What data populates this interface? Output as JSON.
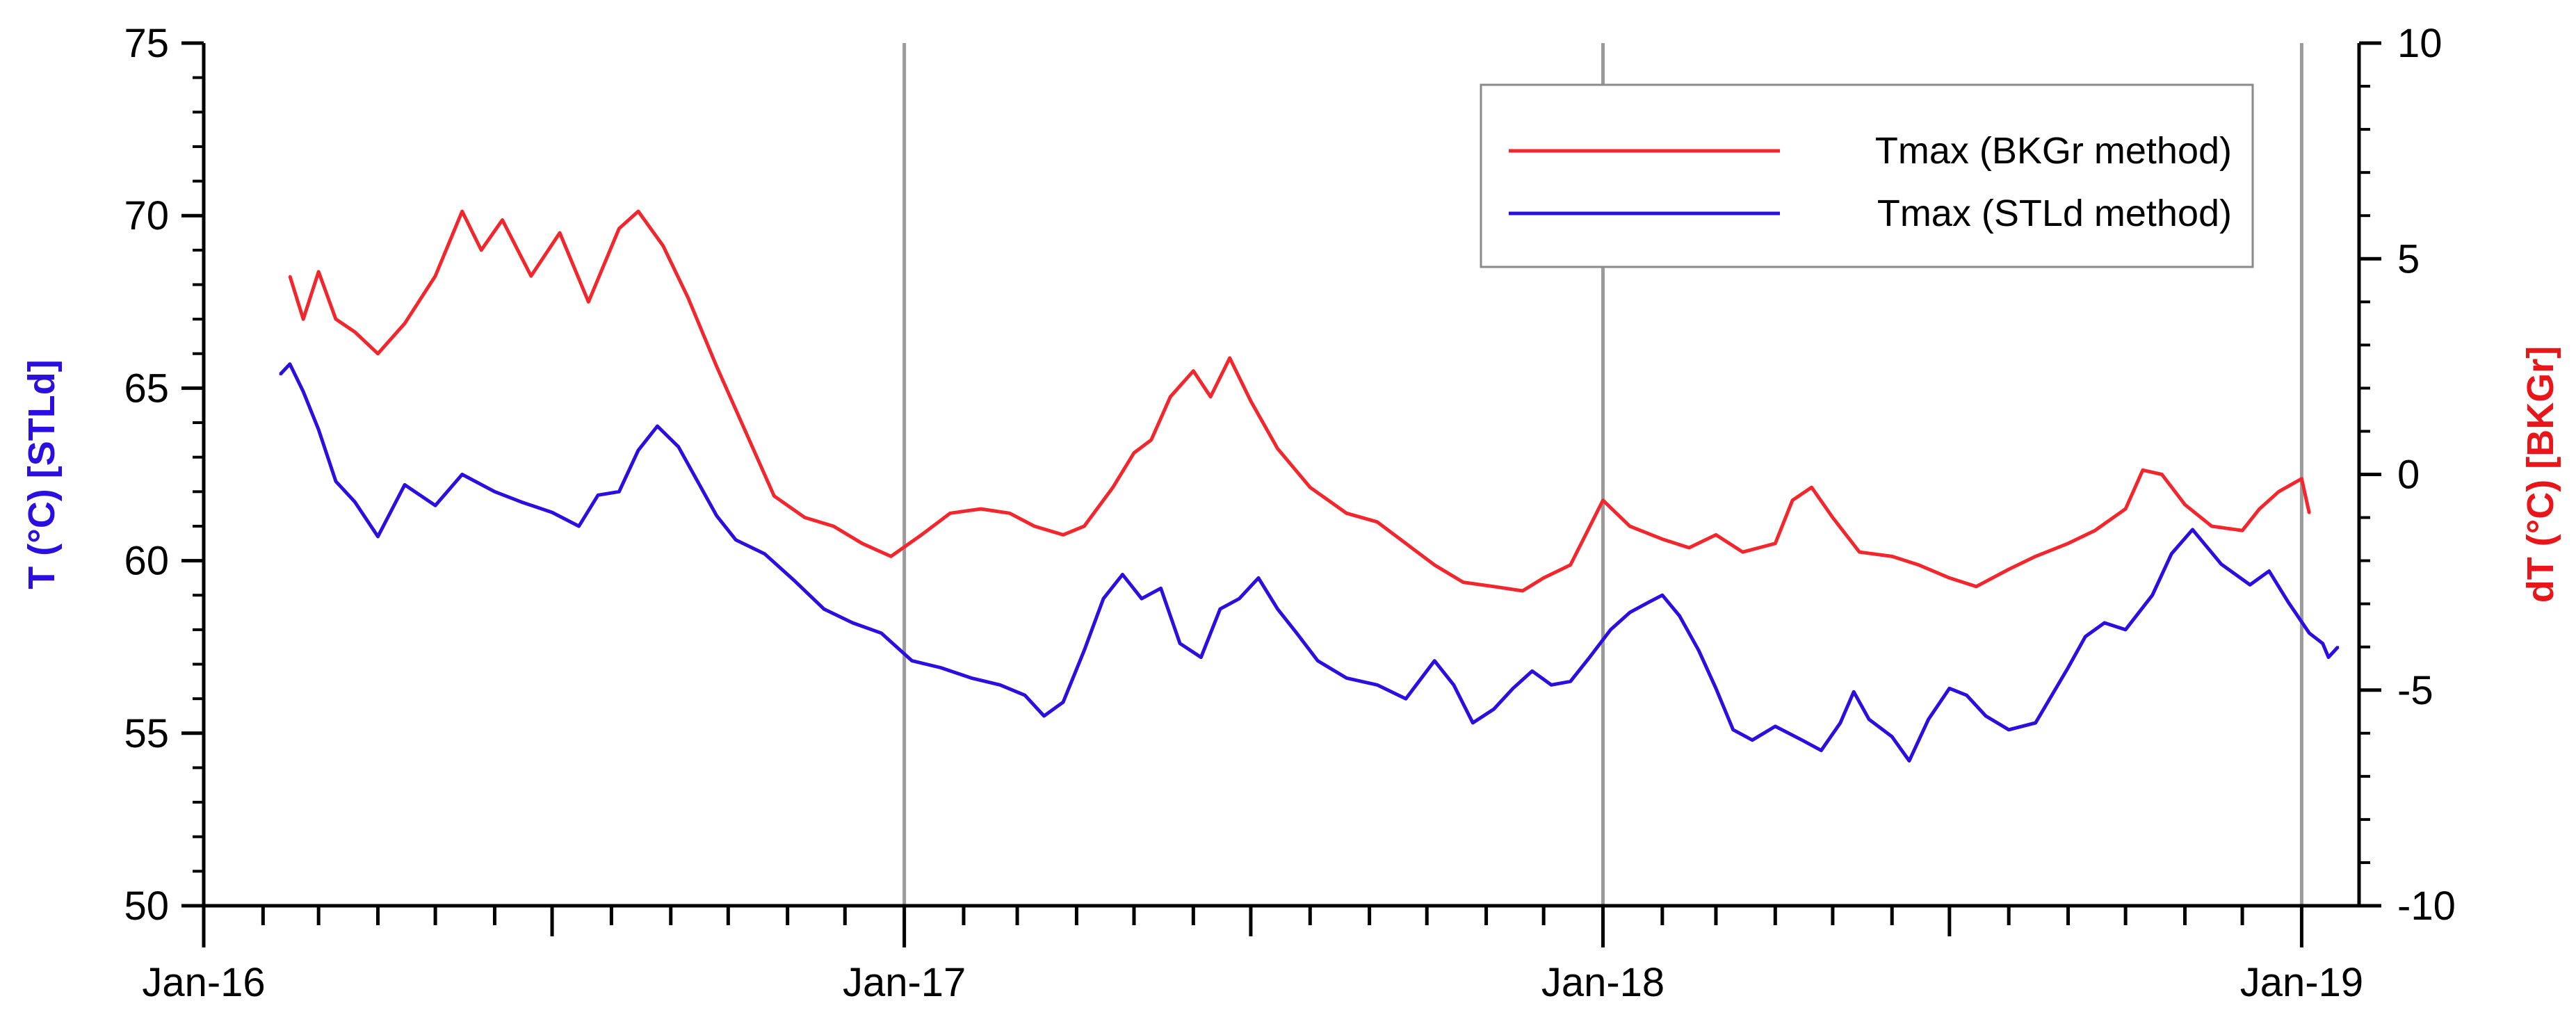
{
  "chart_data": {
    "type": "line",
    "x_axis": {
      "type": "date",
      "range": [
        "2016-01-01",
        "2019-01-31"
      ],
      "tick_labels": [
        "Jan-16",
        "Jan-17",
        "Jan-18",
        "Jan-19"
      ],
      "label_format": "Mon-YY",
      "minor_ticks": "monthly",
      "vertical_gridlines_at": [
        "2017-01-01",
        "2018-01-01",
        "2019-01-01"
      ]
    },
    "y_left": {
      "label": "T (°C) [STLd]",
      "range": [
        50,
        75
      ],
      "ticks": [
        50,
        55,
        60,
        65,
        70,
        75
      ],
      "color": "#2b0fe0"
    },
    "y_right": {
      "label": "dT (°C) [BKGr]",
      "range": [
        -10,
        10
      ],
      "ticks": [
        -10,
        -5,
        0,
        5,
        10
      ],
      "color": "#e8151b"
    },
    "legend": {
      "position": "top-right"
    },
    "series": [
      {
        "name": "Tmax (BKGr method)",
        "color": "#f2262c",
        "axis": "right",
        "points": [
          [
            "2016-02-15",
            4.6
          ],
          [
            "2016-02-22",
            3.6
          ],
          [
            "2016-03-01",
            4.7
          ],
          [
            "2016-03-10",
            3.6
          ],
          [
            "2016-03-20",
            3.3
          ],
          [
            "2016-04-01",
            2.8
          ],
          [
            "2016-04-15",
            3.5
          ],
          [
            "2016-05-01",
            4.6
          ],
          [
            "2016-05-15",
            6.1
          ],
          [
            "2016-05-25",
            5.2
          ],
          [
            "2016-06-05",
            5.9
          ],
          [
            "2016-06-20",
            4.6
          ],
          [
            "2016-07-05",
            5.6
          ],
          [
            "2016-07-20",
            4.0
          ],
          [
            "2016-08-05",
            5.7
          ],
          [
            "2016-08-15",
            6.1
          ],
          [
            "2016-08-28",
            5.3
          ],
          [
            "2016-09-10",
            4.1
          ],
          [
            "2016-09-25",
            2.5
          ],
          [
            "2016-10-10",
            1.0
          ],
          [
            "2016-10-25",
            -0.5
          ],
          [
            "2016-11-10",
            -1.0
          ],
          [
            "2016-11-25",
            -1.2
          ],
          [
            "2016-12-10",
            -1.6
          ],
          [
            "2016-12-25",
            -1.9
          ],
          [
            "2017-01-10",
            -1.4
          ],
          [
            "2017-01-25",
            -0.9
          ],
          [
            "2017-02-10",
            -0.8
          ],
          [
            "2017-02-25",
            -0.9
          ],
          [
            "2017-03-10",
            -1.2
          ],
          [
            "2017-03-25",
            -1.4
          ],
          [
            "2017-04-05",
            -1.2
          ],
          [
            "2017-04-20",
            -0.3
          ],
          [
            "2017-05-01",
            0.5
          ],
          [
            "2017-05-10",
            0.8
          ],
          [
            "2017-05-20",
            1.8
          ],
          [
            "2017-06-01",
            2.4
          ],
          [
            "2017-06-10",
            1.8
          ],
          [
            "2017-06-20",
            2.7
          ],
          [
            "2017-07-01",
            1.7
          ],
          [
            "2017-07-15",
            0.6
          ],
          [
            "2017-08-01",
            -0.3
          ],
          [
            "2017-08-20",
            -0.9
          ],
          [
            "2017-09-05",
            -1.1
          ],
          [
            "2017-09-20",
            -1.6
          ],
          [
            "2017-10-05",
            -2.1
          ],
          [
            "2017-10-20",
            -2.5
          ],
          [
            "2017-11-05",
            -2.6
          ],
          [
            "2017-11-20",
            -2.7
          ],
          [
            "2017-12-01",
            -2.4
          ],
          [
            "2017-12-15",
            -2.1
          ],
          [
            "2018-01-01",
            -0.6
          ],
          [
            "2018-01-15",
            -1.2
          ],
          [
            "2018-02-01",
            -1.5
          ],
          [
            "2018-02-15",
            -1.7
          ],
          [
            "2018-03-01",
            -1.4
          ],
          [
            "2018-03-15",
            -1.8
          ],
          [
            "2018-04-01",
            -1.6
          ],
          [
            "2018-04-10",
            -0.6
          ],
          [
            "2018-04-20",
            -0.3
          ],
          [
            "2018-05-01",
            -1.0
          ],
          [
            "2018-05-15",
            -1.8
          ],
          [
            "2018-06-01",
            -1.9
          ],
          [
            "2018-06-15",
            -2.1
          ],
          [
            "2018-07-01",
            -2.4
          ],
          [
            "2018-07-15",
            -2.6
          ],
          [
            "2018-08-01",
            -2.2
          ],
          [
            "2018-08-15",
            -1.9
          ],
          [
            "2018-09-01",
            -1.6
          ],
          [
            "2018-09-15",
            -1.3
          ],
          [
            "2018-10-01",
            -0.8
          ],
          [
            "2018-10-10",
            0.1
          ],
          [
            "2018-10-20",
            0.0
          ],
          [
            "2018-11-01",
            -0.7
          ],
          [
            "2018-11-15",
            -1.2
          ],
          [
            "2018-12-01",
            -1.3
          ],
          [
            "2018-12-10",
            -0.8
          ],
          [
            "2018-12-20",
            -0.4
          ],
          [
            "2019-01-01",
            -0.1
          ],
          [
            "2019-01-05",
            -0.9
          ]
        ]
      },
      {
        "name": "Tmax (STLd method)",
        "color": "#2b0fe0",
        "axis": "left",
        "points": [
          [
            "2016-02-10",
            65.4
          ],
          [
            "2016-02-15",
            65.7
          ],
          [
            "2016-02-22",
            64.9
          ],
          [
            "2016-03-01",
            63.8
          ],
          [
            "2016-03-10",
            62.3
          ],
          [
            "2016-03-20",
            61.7
          ],
          [
            "2016-04-01",
            60.7
          ],
          [
            "2016-04-15",
            62.2
          ],
          [
            "2016-05-01",
            61.6
          ],
          [
            "2016-05-15",
            62.5
          ],
          [
            "2016-06-01",
            62.0
          ],
          [
            "2016-06-15",
            61.7
          ],
          [
            "2016-07-01",
            61.4
          ],
          [
            "2016-07-15",
            61.0
          ],
          [
            "2016-07-25",
            61.9
          ],
          [
            "2016-08-05",
            62.0
          ],
          [
            "2016-08-15",
            63.2
          ],
          [
            "2016-08-25",
            63.9
          ],
          [
            "2016-09-05",
            63.3
          ],
          [
            "2016-09-15",
            62.3
          ],
          [
            "2016-09-25",
            61.3
          ],
          [
            "2016-10-05",
            60.6
          ],
          [
            "2016-10-20",
            60.2
          ],
          [
            "2016-11-05",
            59.4
          ],
          [
            "2016-11-20",
            58.6
          ],
          [
            "2016-12-05",
            58.2
          ],
          [
            "2016-12-20",
            57.9
          ],
          [
            "2017-01-05",
            57.1
          ],
          [
            "2017-01-20",
            56.9
          ],
          [
            "2017-02-05",
            56.6
          ],
          [
            "2017-02-20",
            56.4
          ],
          [
            "2017-03-05",
            56.1
          ],
          [
            "2017-03-15",
            55.5
          ],
          [
            "2017-03-25",
            55.9
          ],
          [
            "2017-04-05",
            57.4
          ],
          [
            "2017-04-15",
            58.9
          ],
          [
            "2017-04-25",
            59.6
          ],
          [
            "2017-05-05",
            58.9
          ],
          [
            "2017-05-15",
            59.2
          ],
          [
            "2017-05-25",
            57.6
          ],
          [
            "2017-06-05",
            57.2
          ],
          [
            "2017-06-15",
            58.6
          ],
          [
            "2017-06-25",
            58.9
          ],
          [
            "2017-07-05",
            59.5
          ],
          [
            "2017-07-15",
            58.6
          ],
          [
            "2017-07-25",
            57.9
          ],
          [
            "2017-08-05",
            57.1
          ],
          [
            "2017-08-20",
            56.6
          ],
          [
            "2017-09-05",
            56.4
          ],
          [
            "2017-09-20",
            56.0
          ],
          [
            "2017-10-05",
            57.1
          ],
          [
            "2017-10-15",
            56.4
          ],
          [
            "2017-10-25",
            55.3
          ],
          [
            "2017-11-05",
            55.7
          ],
          [
            "2017-11-15",
            56.3
          ],
          [
            "2017-11-25",
            56.8
          ],
          [
            "2017-12-05",
            56.4
          ],
          [
            "2017-12-15",
            56.5
          ],
          [
            "2017-12-25",
            57.2
          ],
          [
            "2018-01-05",
            58.0
          ],
          [
            "2018-01-15",
            58.5
          ],
          [
            "2018-01-25",
            58.8
          ],
          [
            "2018-02-01",
            59.0
          ],
          [
            "2018-02-10",
            58.4
          ],
          [
            "2018-02-20",
            57.4
          ],
          [
            "2018-03-01",
            56.3
          ],
          [
            "2018-03-10",
            55.1
          ],
          [
            "2018-03-20",
            54.8
          ],
          [
            "2018-04-01",
            55.2
          ],
          [
            "2018-04-15",
            54.8
          ],
          [
            "2018-04-25",
            54.5
          ],
          [
            "2018-05-05",
            55.3
          ],
          [
            "2018-05-12",
            56.2
          ],
          [
            "2018-05-20",
            55.4
          ],
          [
            "2018-06-01",
            54.9
          ],
          [
            "2018-06-10",
            54.2
          ],
          [
            "2018-06-20",
            55.4
          ],
          [
            "2018-07-01",
            56.3
          ],
          [
            "2018-07-10",
            56.1
          ],
          [
            "2018-07-20",
            55.5
          ],
          [
            "2018-08-01",
            55.1
          ],
          [
            "2018-08-15",
            55.3
          ],
          [
            "2018-09-01",
            56.9
          ],
          [
            "2018-09-10",
            57.8
          ],
          [
            "2018-09-20",
            58.2
          ],
          [
            "2018-10-01",
            58.0
          ],
          [
            "2018-10-15",
            59.0
          ],
          [
            "2018-10-25",
            60.2
          ],
          [
            "2018-11-05",
            60.9
          ],
          [
            "2018-11-20",
            59.9
          ],
          [
            "2018-12-05",
            59.3
          ],
          [
            "2018-12-15",
            59.7
          ],
          [
            "2018-12-25",
            58.8
          ],
          [
            "2019-01-05",
            57.9
          ],
          [
            "2019-01-12",
            57.6
          ],
          [
            "2019-01-15",
            57.2
          ],
          [
            "2019-01-20",
            57.5
          ]
        ]
      }
    ]
  }
}
